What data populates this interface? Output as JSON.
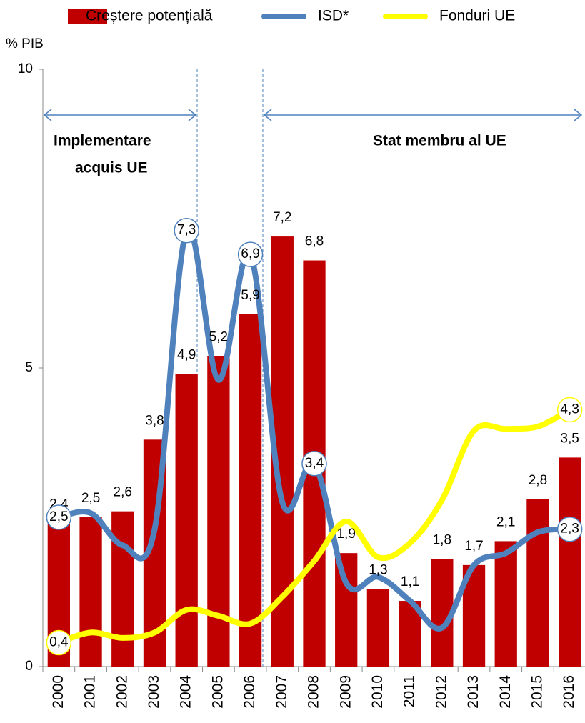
{
  "chart_data": {
    "type": "bar",
    "y_label": "% PIB",
    "annotations": [
      "Implementare",
      "acquis UE",
      "Stat membru al UE"
    ],
    "categories": [
      "2000",
      "2001",
      "2002",
      "2003",
      "2004",
      "2005",
      "2006",
      "2007",
      "2008",
      "2009",
      "2010",
      "2011",
      "2012",
      "2013",
      "2014",
      "2015",
      "2016"
    ],
    "ylim": [
      0,
      10
    ],
    "yticks": [
      0,
      5,
      10
    ],
    "grid": false,
    "series": [
      {
        "name": "Creștere potențială",
        "type": "bar",
        "color": "#c00000",
        "values": [
          2.4,
          2.5,
          2.6,
          3.8,
          4.9,
          5.2,
          5.9,
          7.2,
          6.8,
          1.9,
          1.3,
          1.1,
          1.8,
          1.7,
          2.1,
          2.8,
          3.5
        ],
        "value_labels": [
          "2,4",
          "2,5",
          "2,6",
          "3,8",
          "4,9",
          "5,2",
          "5,9",
          "7,2",
          "6,8",
          "1,9",
          "1,3",
          "1,1",
          "1,8",
          "1,7",
          "2,1",
          "2,8",
          "3,5"
        ]
      },
      {
        "name": "ISD*",
        "type": "line",
        "color": "#4f81bd",
        "values": [
          2.5,
          2.57,
          2.03,
          2.3,
          7.3,
          4.8,
          6.9,
          2.75,
          3.4,
          1.4,
          1.5,
          1.1,
          0.65,
          1.7,
          1.9,
          2.25,
          2.3
        ],
        "value_labels": [
          "2,5",
          null,
          null,
          null,
          "7,3",
          null,
          "6,9",
          null,
          "3,4",
          null,
          null,
          null,
          null,
          null,
          null,
          null,
          "2,3"
        ]
      },
      {
        "name": "Fonduri UE",
        "type": "line",
        "color": "#ffff00",
        "values": [
          0.4,
          0.57,
          0.48,
          0.57,
          0.95,
          0.85,
          0.72,
          1.17,
          1.77,
          2.43,
          1.83,
          2.07,
          2.79,
          3.95,
          3.98,
          4.02,
          4.3
        ],
        "value_labels": [
          "0,4",
          null,
          null,
          null,
          null,
          null,
          null,
          null,
          null,
          null,
          null,
          null,
          null,
          null,
          null,
          null,
          "4,3"
        ]
      }
    ]
  }
}
